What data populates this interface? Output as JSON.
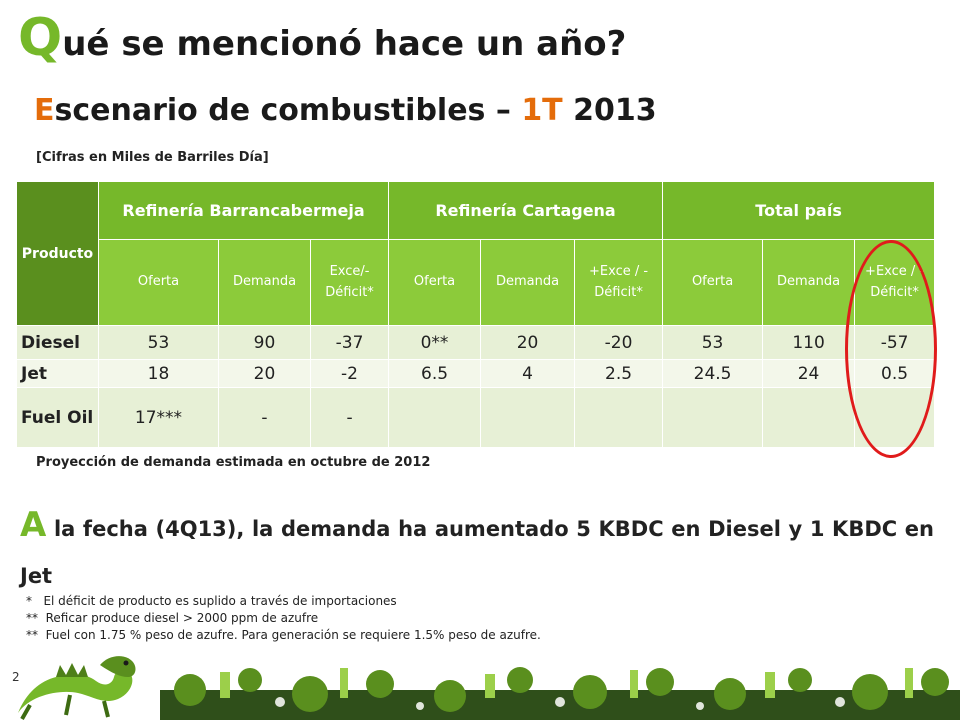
{
  "title": {
    "first_letter": "Q",
    "rest": "ué se mencionó hace un año?"
  },
  "subtitle": {
    "first_letter": "E",
    "part1": "scenario de combustibles – ",
    "accent": "1T",
    "part2": " 2013"
  },
  "units_note": "[Cifras en Miles de Barriles Día]",
  "table": {
    "product_header": "Producto",
    "groups": [
      "Refinería Barrancabermeja",
      "Refinería Cartagena",
      "Total país"
    ],
    "subheaders": [
      "Oferta",
      "Demanda",
      "Exce/- Déficit*",
      "Oferta",
      "Demanda",
      "+Exce / - Déficit*",
      "Oferta",
      "Demanda",
      "+Exce / - Déficit*"
    ],
    "rows": [
      {
        "product": "Diesel",
        "values": [
          "53",
          "90",
          "-37",
          "0**",
          "20",
          "-20",
          "53",
          "110",
          "-57"
        ]
      },
      {
        "product": "Jet",
        "values": [
          "18",
          "20",
          "-2",
          "6.5",
          "4",
          "2.5",
          "24.5",
          "24",
          "0.5"
        ]
      },
      {
        "product": "Fuel Oil",
        "values": [
          "17***",
          "-",
          "-",
          "",
          "",
          "",
          "",
          "",
          ""
        ]
      }
    ]
  },
  "projection_note": "Proyección de demanda estimada en octubre de 2012",
  "statement": {
    "first_letter": "A",
    "rest": " la fecha (4Q13), la demanda ha aumentado 5 KBDC en Diesel y 1 KBDC en Jet"
  },
  "footnotes": [
    "*   El déficit de producto es suplido a través de importaciones",
    "**  Reficar produce diesel > 2000 ppm de azufre",
    "**  Fuel con 1.75 % peso de azufre. Para generación se requiere 1.5% peso de azufre."
  ],
  "page_number": "2",
  "colors": {
    "brand_green": "#76b82a",
    "accent_orange": "#e46c0a",
    "highlight_red": "#e01b1b"
  }
}
